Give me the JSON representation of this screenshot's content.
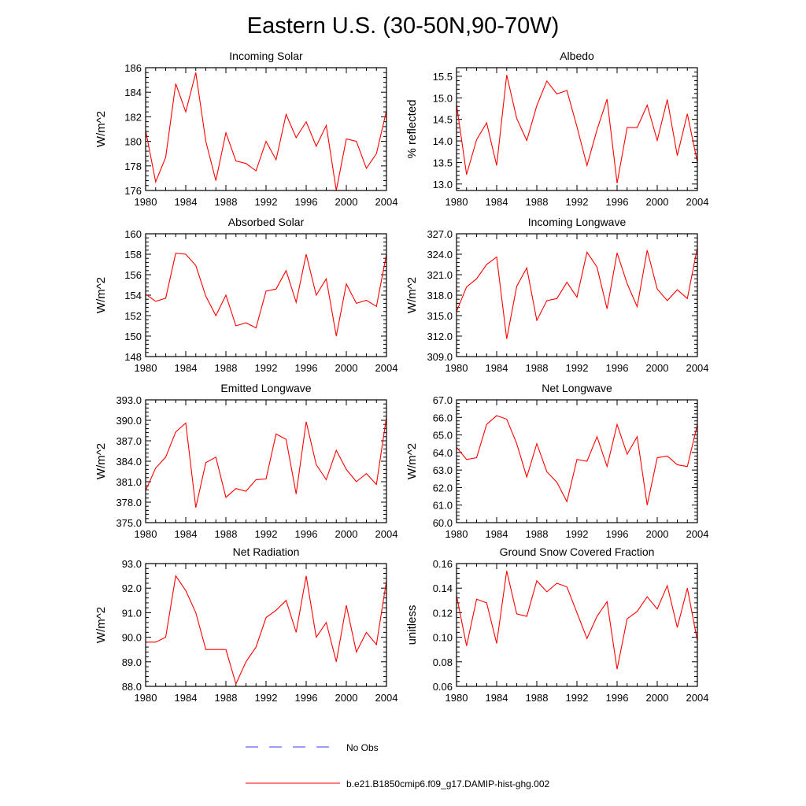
{
  "figure_title": "Eastern U.S. (30-50N,90-70W)",
  "legend": {
    "obs_label": "No Obs",
    "obs_color": "#3a3aff",
    "model_label": "b.e21.B1850cmip6.f09_g17.DAMIP-hist-ghg.002",
    "model_color": "#ff0000"
  },
  "chart_data": [
    {
      "type": "line",
      "title": "Incoming Solar",
      "ylabel": "W/m^2",
      "xlim": [
        1980,
        2004
      ],
      "ylim": [
        176,
        186
      ],
      "yticks": [
        "176",
        "178",
        "180",
        "182",
        "184",
        "186"
      ],
      "xticks": [
        "1980",
        "1984",
        "1988",
        "1992",
        "1996",
        "2000",
        "2004"
      ],
      "x": [
        1980,
        1981,
        1982,
        1983,
        1984,
        1985,
        1986,
        1987,
        1988,
        1989,
        1990,
        1991,
        1992,
        1993,
        1994,
        1995,
        1996,
        1997,
        1998,
        1999,
        2000,
        2001,
        2002,
        2003,
        2004
      ],
      "series": [
        {
          "name": "b.e21.B1850cmip6.f09_g17.DAMIP-hist-ghg.002",
          "values": [
            180.9,
            176.7,
            178.7,
            184.7,
            182.4,
            185.6,
            180.0,
            176.8,
            180.7,
            178.4,
            178.2,
            177.6,
            180.0,
            178.5,
            182.2,
            180.3,
            181.6,
            179.6,
            181.3,
            176.0,
            180.2,
            180.0,
            177.8,
            179.0,
            182.5
          ]
        }
      ]
    },
    {
      "type": "line",
      "title": "Albedo",
      "ylabel": "% reflected",
      "xlim": [
        1980,
        2004
      ],
      "ylim": [
        12.85,
        15.7
      ],
      "yticks": [
        "13.0",
        "13.5",
        "14.0",
        "14.5",
        "15.0",
        "15.5"
      ],
      "xticks": [
        "1980",
        "1984",
        "1988",
        "1992",
        "1996",
        "2000",
        "2004"
      ],
      "x": [
        1980,
        1981,
        1982,
        1983,
        1984,
        1985,
        1986,
        1987,
        1988,
        1989,
        1990,
        1991,
        1992,
        1993,
        1994,
        1995,
        1996,
        1997,
        1998,
        1999,
        2000,
        2001,
        2002,
        2003,
        2004
      ],
      "series": [
        {
          "name": "b.e21.B1850cmip6.f09_g17.DAMIP-hist-ghg.002",
          "values": [
            14.85,
            13.22,
            14.03,
            14.42,
            13.43,
            15.53,
            14.52,
            14.01,
            14.82,
            15.39,
            15.09,
            15.17,
            14.33,
            13.43,
            14.26,
            14.97,
            13.02,
            14.31,
            14.31,
            14.83,
            14.01,
            14.96,
            13.66,
            14.63,
            13.5
          ]
        }
      ]
    },
    {
      "type": "line",
      "title": "Absorbed Solar",
      "ylabel": "W/m^2",
      "xlim": [
        1980,
        2004
      ],
      "ylim": [
        148,
        160
      ],
      "yticks": [
        "148",
        "150",
        "152",
        "154",
        "156",
        "158",
        "160"
      ],
      "xticks": [
        "1980",
        "1984",
        "1988",
        "1992",
        "1996",
        "2000",
        "2004"
      ],
      "x": [
        1980,
        1981,
        1982,
        1983,
        1984,
        1985,
        1986,
        1987,
        1988,
        1989,
        1990,
        1991,
        1992,
        1993,
        1994,
        1995,
        1996,
        1997,
        1998,
        1999,
        2000,
        2001,
        2002,
        2003,
        2004
      ],
      "series": [
        {
          "name": "b.e21.B1850cmip6.f09_g17.DAMIP-hist-ghg.002",
          "values": [
            154.1,
            153.4,
            153.7,
            158.1,
            158.0,
            156.9,
            153.9,
            152.0,
            154.0,
            151.0,
            151.3,
            150.8,
            154.4,
            154.6,
            156.4,
            153.3,
            158.0,
            154.0,
            155.6,
            150.0,
            155.1,
            153.2,
            153.5,
            152.9,
            158.0
          ]
        }
      ]
    },
    {
      "type": "line",
      "title": "Incoming Longwave",
      "ylabel": "W/m^2",
      "xlim": [
        1980,
        2004
      ],
      "ylim": [
        309,
        327
      ],
      "yticks": [
        "309.0",
        "312.0",
        "315.0",
        "318.0",
        "321.0",
        "324.0",
        "327.0"
      ],
      "xticks": [
        "1980",
        "1984",
        "1988",
        "1992",
        "1996",
        "2000",
        "2004"
      ],
      "x": [
        1980,
        1981,
        1982,
        1983,
        1984,
        1985,
        1986,
        1987,
        1988,
        1989,
        1990,
        1991,
        1992,
        1993,
        1994,
        1995,
        1996,
        1997,
        1998,
        1999,
        2000,
        2001,
        2002,
        2003,
        2004
      ],
      "series": [
        {
          "name": "b.e21.B1850cmip6.f09_g17.DAMIP-hist-ghg.002",
          "values": [
            315.6,
            319.2,
            320.4,
            322.5,
            323.6,
            311.6,
            319.3,
            322.0,
            314.3,
            317.2,
            317.5,
            319.9,
            317.7,
            324.3,
            322.1,
            316.0,
            324.2,
            319.7,
            316.3,
            324.6,
            318.9,
            317.2,
            318.8,
            317.5,
            325.0
          ]
        }
      ]
    },
    {
      "type": "line",
      "title": "Emitted Longwave",
      "ylabel": "W/m^2",
      "xlim": [
        1980,
        2004
      ],
      "ylim": [
        375,
        393
      ],
      "yticks": [
        "375.0",
        "378.0",
        "381.0",
        "384.0",
        "387.0",
        "390.0",
        "393.0"
      ],
      "xticks": [
        "1980",
        "1984",
        "1988",
        "1992",
        "1996",
        "2000",
        "2004"
      ],
      "x": [
        1980,
        1981,
        1982,
        1983,
        1984,
        1985,
        1986,
        1987,
        1988,
        1989,
        1990,
        1991,
        1992,
        1993,
        1994,
        1995,
        1996,
        1997,
        1998,
        1999,
        2000,
        2001,
        2002,
        2003,
        2004
      ],
      "series": [
        {
          "name": "b.e21.B1850cmip6.f09_g17.DAMIP-hist-ghg.002",
          "values": [
            379.7,
            383.0,
            384.6,
            388.3,
            389.6,
            377.2,
            383.8,
            384.6,
            378.7,
            380.0,
            379.6,
            381.3,
            381.4,
            388.0,
            387.2,
            379.2,
            389.8,
            383.5,
            381.3,
            385.6,
            382.8,
            381.0,
            382.2,
            380.6,
            390.5
          ]
        }
      ]
    },
    {
      "type": "line",
      "title": "Net Longwave",
      "ylabel": "W/m^2",
      "xlim": [
        1980,
        2004
      ],
      "ylim": [
        60,
        67
      ],
      "yticks": [
        "60.0",
        "61.0",
        "62.0",
        "63.0",
        "64.0",
        "65.0",
        "66.0",
        "67.0"
      ],
      "xticks": [
        "1980",
        "1984",
        "1988",
        "1992",
        "1996",
        "2000",
        "2004"
      ],
      "x": [
        1980,
        1981,
        1982,
        1983,
        1984,
        1985,
        1986,
        1987,
        1988,
        1989,
        1990,
        1991,
        1992,
        1993,
        1994,
        1995,
        1996,
        1997,
        1998,
        1999,
        2000,
        2001,
        2002,
        2003,
        2004
      ],
      "series": [
        {
          "name": "b.e21.B1850cmip6.f09_g17.DAMIP-hist-ghg.002",
          "values": [
            64.3,
            63.6,
            63.7,
            65.6,
            66.1,
            65.9,
            64.5,
            62.6,
            64.5,
            62.9,
            62.3,
            61.2,
            63.6,
            63.5,
            64.9,
            63.2,
            65.6,
            63.9,
            64.9,
            61.0,
            63.7,
            63.8,
            63.3,
            63.2,
            65.6
          ]
        }
      ]
    },
    {
      "type": "line",
      "title": "Net Radiation",
      "ylabel": "W/m^2",
      "xlim": [
        1980,
        2004
      ],
      "ylim": [
        88,
        93
      ],
      "yticks": [
        "88.0",
        "89.0",
        "90.0",
        "91.0",
        "92.0",
        "93.0"
      ],
      "xticks": [
        "1980",
        "1984",
        "1988",
        "1992",
        "1996",
        "2000",
        "2004"
      ],
      "x": [
        1980,
        1981,
        1982,
        1983,
        1984,
        1985,
        1986,
        1987,
        1988,
        1989,
        1990,
        1991,
        1992,
        1993,
        1994,
        1995,
        1996,
        1997,
        1998,
        1999,
        2000,
        2001,
        2002,
        2003,
        2004
      ],
      "series": [
        {
          "name": "b.e21.B1850cmip6.f09_g17.DAMIP-hist-ghg.002",
          "values": [
            89.8,
            89.8,
            90.0,
            92.5,
            91.9,
            91.0,
            89.5,
            89.5,
            89.5,
            88.1,
            89.0,
            89.6,
            90.8,
            91.1,
            91.5,
            90.2,
            92.5,
            90.0,
            90.6,
            89.0,
            91.3,
            89.4,
            90.2,
            89.7,
            92.3
          ]
        }
      ]
    },
    {
      "type": "line",
      "title": "Ground Snow Covered Fraction",
      "ylabel": "unitless",
      "xlim": [
        1980,
        2004
      ],
      "ylim": [
        0.06,
        0.16
      ],
      "yticks": [
        "0.06",
        "0.08",
        "0.10",
        "0.12",
        "0.14",
        "0.16"
      ],
      "xticks": [
        "1980",
        "1984",
        "1988",
        "1992",
        "1996",
        "2000",
        "2004"
      ],
      "x": [
        1980,
        1981,
        1982,
        1983,
        1984,
        1985,
        1986,
        1987,
        1988,
        1989,
        1990,
        1991,
        1992,
        1993,
        1994,
        1995,
        1996,
        1997,
        1998,
        1999,
        2000,
        2001,
        2002,
        2003,
        2004
      ],
      "series": [
        {
          "name": "b.e21.B1850cmip6.f09_g17.DAMIP-hist-ghg.002",
          "values": [
            0.134,
            0.093,
            0.131,
            0.128,
            0.095,
            0.154,
            0.119,
            0.117,
            0.146,
            0.137,
            0.144,
            0.141,
            0.12,
            0.099,
            0.117,
            0.129,
            0.074,
            0.115,
            0.121,
            0.133,
            0.123,
            0.142,
            0.108,
            0.14,
            0.097
          ]
        }
      ]
    }
  ]
}
